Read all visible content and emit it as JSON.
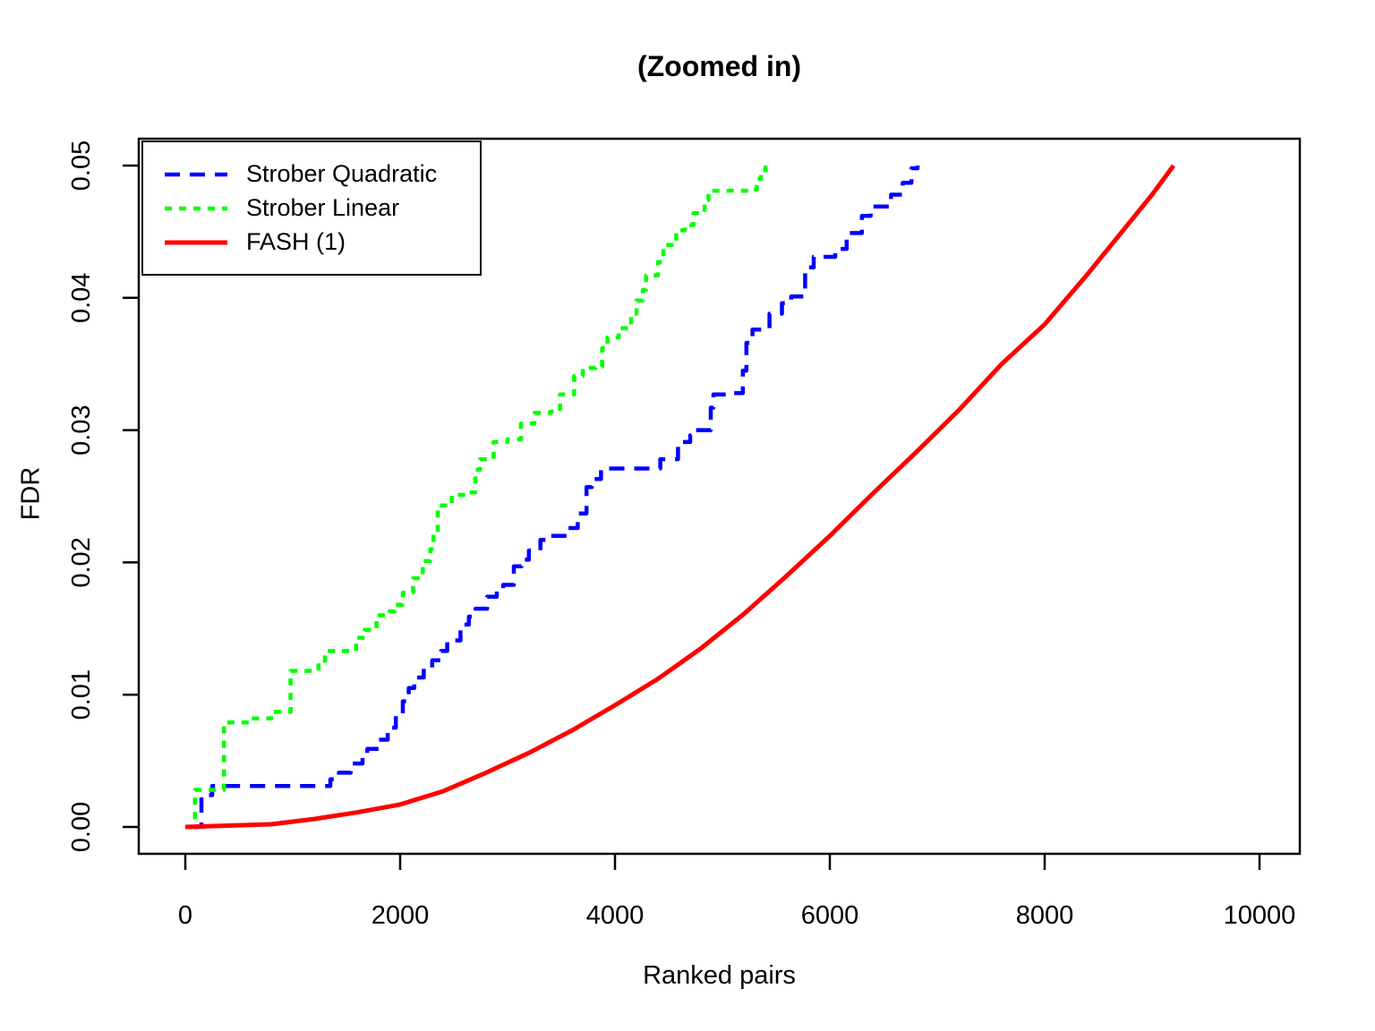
{
  "title": "(Zoomed in)",
  "chart_data": {
    "type": "line",
    "title": "(Zoomed in)",
    "xlabel": "Ranked pairs",
    "ylabel": "FDR",
    "xlim": [
      0,
      10600
    ],
    "ylim": [
      0,
      0.05
    ],
    "x_ticks": [
      0,
      2000,
      4000,
      6000,
      8000,
      10000
    ],
    "x_tick_labels": [
      "0",
      "2000",
      "4000",
      "6000",
      "8000",
      "10000"
    ],
    "y_ticks": [
      0,
      0.01,
      0.02,
      0.03,
      0.04,
      0.05
    ],
    "y_tick_labels": [
      "0.00",
      "0.01",
      "0.02",
      "0.03",
      "0.04",
      "0.05"
    ],
    "grid": false,
    "legend_position": "top-left",
    "series": [
      {
        "name": "Strober Quadratic",
        "color": "#0000FF",
        "style": "dashed",
        "interpolation": "step-after",
        "points": [
          [
            50,
            0
          ],
          [
            150,
            0
          ],
          [
            150,
            0.0024
          ],
          [
            230,
            0.0024
          ],
          [
            250,
            0.0031
          ],
          [
            1280,
            0.0031
          ],
          [
            1350,
            0.0036
          ],
          [
            1430,
            0.0041
          ],
          [
            1540,
            0.0048
          ],
          [
            1650,
            0.0055
          ],
          [
            1694,
            0.0059
          ],
          [
            1800,
            0.0066
          ],
          [
            1884,
            0.0075
          ],
          [
            1960,
            0.0084
          ],
          [
            2025,
            0.0095
          ],
          [
            2080,
            0.0105
          ],
          [
            2132,
            0.0113
          ],
          [
            2220,
            0.012
          ],
          [
            2298,
            0.0126
          ],
          [
            2380,
            0.0133
          ],
          [
            2438,
            0.0141
          ],
          [
            2562,
            0.0153
          ],
          [
            2640,
            0.0159
          ],
          [
            2702,
            0.0165
          ],
          [
            2810,
            0.0174
          ],
          [
            2900,
            0.0179
          ],
          [
            2959,
            0.0183
          ],
          [
            3058,
            0.0197
          ],
          [
            3130,
            0.0202
          ],
          [
            3198,
            0.0209
          ],
          [
            3306,
            0.0217
          ],
          [
            3400,
            0.022
          ],
          [
            3560,
            0.0226
          ],
          [
            3653,
            0.0237
          ],
          [
            3735,
            0.0257
          ],
          [
            3785,
            0.0263
          ],
          [
            3870,
            0.0271
          ],
          [
            4400,
            0.0271
          ],
          [
            4422,
            0.0278
          ],
          [
            4587,
            0.0291
          ],
          [
            4700,
            0.0296
          ],
          [
            4752,
            0.03
          ],
          [
            4892,
            0.0317
          ],
          [
            4917,
            0.0327
          ],
          [
            5060,
            0.0328
          ],
          [
            5190,
            0.0345
          ],
          [
            5223,
            0.0366
          ],
          [
            5280,
            0.0376
          ],
          [
            5410,
            0.0376
          ],
          [
            5438,
            0.0388
          ],
          [
            5554,
            0.0396
          ],
          [
            5640,
            0.0401
          ],
          [
            5770,
            0.0423
          ],
          [
            5850,
            0.0431
          ],
          [
            5950,
            0.0431
          ],
          [
            6050,
            0.0437
          ],
          [
            6157,
            0.0449
          ],
          [
            6298,
            0.0462
          ],
          [
            6380,
            0.0469
          ],
          [
            6480,
            0.0469
          ],
          [
            6570,
            0.0478
          ],
          [
            6678,
            0.0487
          ],
          [
            6760,
            0.0498
          ],
          [
            6817,
            0.05
          ]
        ]
      },
      {
        "name": "Strober Linear",
        "color": "#00FF00",
        "style": "dotted",
        "interpolation": "step-after",
        "points": [
          [
            30,
            0
          ],
          [
            90,
            0
          ],
          [
            90,
            0.0028
          ],
          [
            360,
            0.0028
          ],
          [
            360,
            0.0079
          ],
          [
            600,
            0.0079
          ],
          [
            620,
            0.0082
          ],
          [
            800,
            0.0087
          ],
          [
            980,
            0.0087
          ],
          [
            980,
            0.0118
          ],
          [
            1200,
            0.0118
          ],
          [
            1240,
            0.0124
          ],
          [
            1300,
            0.0133
          ],
          [
            1550,
            0.0133
          ],
          [
            1590,
            0.0143
          ],
          [
            1670,
            0.0149
          ],
          [
            1780,
            0.016
          ],
          [
            1900,
            0.0163
          ],
          [
            1950,
            0.0168
          ],
          [
            2025,
            0.0177
          ],
          [
            2120,
            0.0188
          ],
          [
            2210,
            0.0201
          ],
          [
            2280,
            0.021
          ],
          [
            2310,
            0.0221
          ],
          [
            2350,
            0.0243
          ],
          [
            2480,
            0.0251
          ],
          [
            2620,
            0.0253
          ],
          [
            2700,
            0.027
          ],
          [
            2744,
            0.0278
          ],
          [
            2870,
            0.0291
          ],
          [
            3000,
            0.0293
          ],
          [
            3124,
            0.0305
          ],
          [
            3250,
            0.0313
          ],
          [
            3400,
            0.0314
          ],
          [
            3488,
            0.0327
          ],
          [
            3620,
            0.0341
          ],
          [
            3700,
            0.0347
          ],
          [
            3820,
            0.0348
          ],
          [
            3880,
            0.0362
          ],
          [
            3930,
            0.037
          ],
          [
            4035,
            0.0377
          ],
          [
            4150,
            0.0388
          ],
          [
            4200,
            0.0398
          ],
          [
            4260,
            0.0406
          ],
          [
            4290,
            0.0417
          ],
          [
            4400,
            0.0427
          ],
          [
            4450,
            0.044
          ],
          [
            4570,
            0.0451
          ],
          [
            4650,
            0.0455
          ],
          [
            4730,
            0.0464
          ],
          [
            4835,
            0.0474
          ],
          [
            4870,
            0.0481
          ],
          [
            5250,
            0.0482
          ],
          [
            5320,
            0.049
          ],
          [
            5360,
            0.0494
          ],
          [
            5400,
            0.05
          ]
        ]
      },
      {
        "name": "FASH (1)",
        "color": "#FF0000",
        "style": "solid",
        "interpolation": "linear",
        "points": [
          [
            0,
            0
          ],
          [
            400,
            0.0001
          ],
          [
            800,
            0.0002
          ],
          [
            1200,
            0.0006
          ],
          [
            1600,
            0.0011
          ],
          [
            2000,
            0.0017
          ],
          [
            2400,
            0.0027
          ],
          [
            2800,
            0.0041
          ],
          [
            3200,
            0.0056
          ],
          [
            3600,
            0.0073
          ],
          [
            4000,
            0.0092
          ],
          [
            4400,
            0.0112
          ],
          [
            4800,
            0.0135
          ],
          [
            5200,
            0.0161
          ],
          [
            5600,
            0.019
          ],
          [
            6000,
            0.022
          ],
          [
            6400,
            0.0252
          ],
          [
            6800,
            0.0283
          ],
          [
            7200,
            0.0315
          ],
          [
            7600,
            0.035
          ],
          [
            8000,
            0.038
          ],
          [
            8400,
            0.0418
          ],
          [
            8800,
            0.0458
          ],
          [
            9000,
            0.0478
          ],
          [
            9200,
            0.05
          ]
        ]
      }
    ]
  }
}
